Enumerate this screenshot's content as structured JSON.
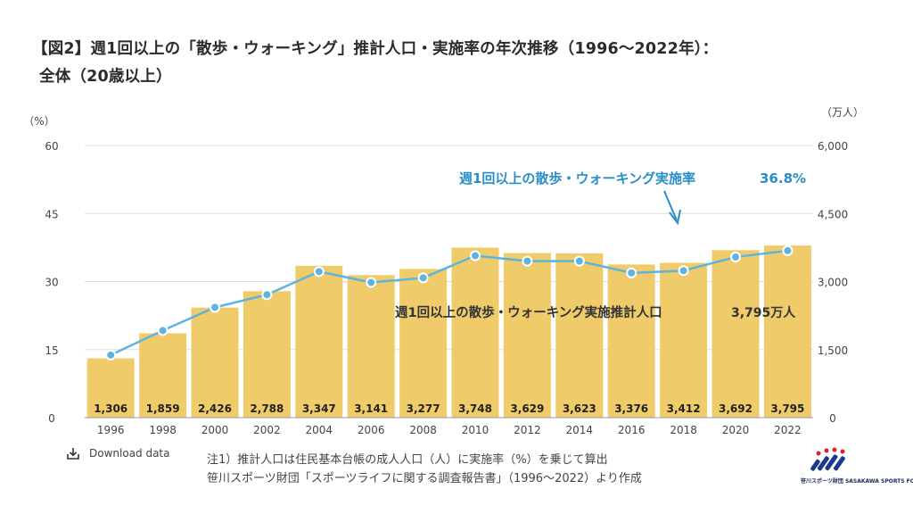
{
  "title": {
    "line1": "【図2】週1回以上の「散歩・ウォーキング」推計人口・実施率の年次推移（1996〜2022年）：",
    "line2": "全体（20歳以上）"
  },
  "chart_data": {
    "type": "bar+line",
    "categories": [
      "1996",
      "1998",
      "2000",
      "2002",
      "2004",
      "2006",
      "2008",
      "2010",
      "2012",
      "2014",
      "2016",
      "2018",
      "2020",
      "2022"
    ],
    "series": [
      {
        "type": "bar",
        "axis": "right",
        "values": [
          1306,
          1859,
          2426,
          2788,
          3347,
          3141,
          3277,
          3748,
          3629,
          3623,
          3376,
          3412,
          3692,
          3795
        ],
        "value_labels": [
          "1,306",
          "1,859",
          "2,426",
          "2,788",
          "3,347",
          "3,141",
          "3,277",
          "3,748",
          "3,629",
          "3,623",
          "3,376",
          "3,412",
          "3,692",
          "3,795"
        ]
      },
      {
        "type": "line",
        "axis": "left",
        "values": [
          13.8,
          19.2,
          24.3,
          27.1,
          32.2,
          29.8,
          30.8,
          35.7,
          34.5,
          34.5,
          31.9,
          32.4,
          35.4,
          36.8
        ]
      }
    ],
    "left_axis": {
      "unit": "（%）",
      "ticks": [
        "0",
        "15",
        "30",
        "45",
        "60"
      ],
      "min": 0,
      "max": 60
    },
    "right_axis": {
      "unit": "（万人）",
      "ticks": [
        "0",
        "1,500",
        "3,000",
        "4,500",
        "6,000"
      ],
      "min": 0,
      "max": 6000
    },
    "annotations": {
      "line_label": "週1回以上の散歩・ウォーキング実施率",
      "line_value": "36.8%",
      "bar_label": "週1回以上の散歩・ウォーキング実施推計人口",
      "bar_value": "3,795万人"
    },
    "grid": true,
    "colors": {
      "bar": "#f0cb6a",
      "line": "#5db4de",
      "marker_fill": "#5db4de",
      "marker_stroke": "#ffffff",
      "annotation": "#2a8fc7",
      "grid": "#dddddd"
    }
  },
  "download": {
    "label": "Download data",
    "icon": "download-icon"
  },
  "notes": {
    "line1": "注1）推計人口は住民基本台帳の成人人口（人）に実施率（%）を乗じて算出",
    "line2": "笹川スポーツ財団「スポーツライフに関する調査報告書」（1996〜2022）より作成"
  },
  "logo": {
    "icon": "ssf-logo",
    "text": "笹川スポーツ財団 SASAKAWA SPORTS FOUNDATION"
  }
}
